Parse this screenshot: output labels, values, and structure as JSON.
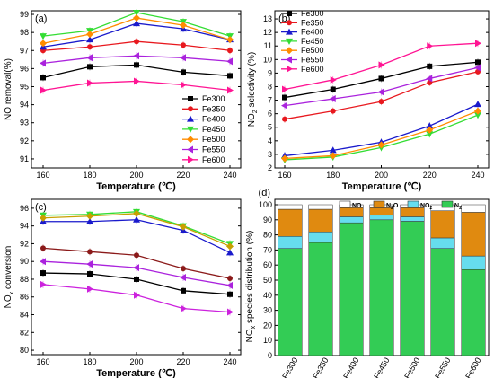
{
  "chart_data": [
    {
      "id": "a",
      "type": "line",
      "panel_label": "(a)",
      "xlabel": "Temperature (℃)",
      "ylabel": "NO removal(%)",
      "x": [
        160,
        180,
        200,
        220,
        240
      ],
      "xticks": [
        "160",
        "180",
        "200",
        "220",
        "240"
      ],
      "ylim": [
        90.5,
        99.2
      ],
      "yticks": [
        91,
        92,
        93,
        94,
        95,
        96,
        97,
        98,
        99
      ],
      "legend_position": "right",
      "series": [
        {
          "name": "Fe300",
          "color": "#000000",
          "marker": "square",
          "values": [
            95.5,
            96.1,
            96.2,
            95.8,
            95.6
          ]
        },
        {
          "name": "Fe350",
          "color": "#e8181e",
          "marker": "circle",
          "values": [
            97.0,
            97.2,
            97.5,
            97.3,
            97.0
          ]
        },
        {
          "name": "Fe400",
          "color": "#1a1acc",
          "marker": "triangle",
          "values": [
            97.2,
            97.6,
            98.5,
            98.2,
            97.6
          ]
        },
        {
          "name": "Fe450",
          "color": "#33dd33",
          "marker": "tri-down",
          "values": [
            97.8,
            98.1,
            99.1,
            98.6,
            97.8
          ]
        },
        {
          "name": "Fe500",
          "color": "#ff8c00",
          "marker": "diamond",
          "values": [
            97.4,
            97.9,
            98.8,
            98.4,
            97.6
          ]
        },
        {
          "name": "Fe550",
          "color": "#aa22dd",
          "marker": "tri-left",
          "values": [
            96.3,
            96.6,
            96.7,
            96.6,
            96.4
          ]
        },
        {
          "name": "Fe600",
          "color": "#ff1493",
          "marker": "tri-right",
          "values": [
            94.8,
            95.2,
            95.3,
            95.1,
            94.8
          ]
        }
      ]
    },
    {
      "id": "b",
      "type": "line",
      "panel_label": "(b)",
      "xlabel": "Temperature (℃)",
      "ylabel_main": "NO",
      "ylabel_sub": "2",
      "ylabel_rest": " selectivity (%)",
      "x": [
        160,
        180,
        200,
        220,
        240
      ],
      "xticks": [
        "160",
        "180",
        "200",
        "220",
        "240"
      ],
      "ylim": [
        2,
        13.6
      ],
      "yticks": [
        2,
        3,
        4,
        5,
        6,
        7,
        8,
        9,
        10,
        11,
        12,
        13
      ],
      "legend_position": "top-left",
      "series": [
        {
          "name": "Fe300",
          "color": "#000000",
          "marker": "square",
          "values": [
            7.2,
            7.8,
            8.6,
            9.5,
            9.8
          ]
        },
        {
          "name": "Fe350",
          "color": "#e8181e",
          "marker": "circle",
          "values": [
            5.6,
            6.2,
            6.9,
            8.3,
            9.1
          ]
        },
        {
          "name": "Fe400",
          "color": "#1a1acc",
          "marker": "triangle",
          "values": [
            2.9,
            3.3,
            3.9,
            5.1,
            6.7
          ]
        },
        {
          "name": "Fe450",
          "color": "#33dd33",
          "marker": "tri-down",
          "values": [
            2.6,
            2.8,
            3.5,
            4.5,
            5.9
          ]
        },
        {
          "name": "Fe500",
          "color": "#ff8c00",
          "marker": "diamond",
          "values": [
            2.7,
            2.9,
            3.7,
            4.8,
            6.2
          ]
        },
        {
          "name": "Fe550",
          "color": "#aa22dd",
          "marker": "tri-left",
          "values": [
            6.6,
            7.1,
            7.6,
            8.6,
            9.4
          ]
        },
        {
          "name": "Fe600",
          "color": "#ff1493",
          "marker": "tri-right",
          "values": [
            7.8,
            8.5,
            9.6,
            11.0,
            11.2
          ]
        }
      ]
    },
    {
      "id": "c",
      "type": "line",
      "panel_label": "(c)",
      "xlabel": "Temperature (℃)",
      "ylabel_main": "NO",
      "ylabel_sub": "x",
      "ylabel_rest": " conversion",
      "x": [
        160,
        180,
        200,
        220,
        240
      ],
      "xticks": [
        "160",
        "180",
        "200",
        "220",
        "240"
      ],
      "ylim": [
        79.5,
        97
      ],
      "yticks": [
        80,
        82,
        84,
        86,
        88,
        90,
        92,
        94,
        96
      ],
      "series": [
        {
          "name": "Fe300",
          "color": "#000000",
          "marker": "square",
          "values": [
            88.7,
            88.6,
            88.0,
            86.7,
            86.3
          ]
        },
        {
          "name": "Fe350",
          "color": "#8b1a1a",
          "marker": "circle",
          "values": [
            91.5,
            91.1,
            90.7,
            89.2,
            88.1
          ]
        },
        {
          "name": "Fe400",
          "color": "#1a1acc",
          "marker": "triangle",
          "values": [
            94.5,
            94.5,
            94.7,
            93.5,
            91.0
          ]
        },
        {
          "name": "Fe450",
          "color": "#33dd33",
          "marker": "tri-down",
          "values": [
            95.2,
            95.3,
            95.6,
            94.0,
            92.0
          ]
        },
        {
          "name": "Fe500",
          "color": "#c8a000",
          "marker": "diamond",
          "values": [
            94.9,
            95.1,
            95.4,
            93.9,
            91.7
          ]
        },
        {
          "name": "Fe550",
          "color": "#aa22dd",
          "marker": "tri-left",
          "values": [
            90.0,
            89.7,
            89.3,
            88.2,
            87.3
          ]
        },
        {
          "name": "Fe600",
          "color": "#cc22dd",
          "marker": "tri-right",
          "values": [
            87.4,
            86.9,
            86.2,
            84.7,
            84.3
          ]
        }
      ]
    },
    {
      "id": "d",
      "type": "bar",
      "stacked": true,
      "panel_label": "(d)",
      "ylabel_main": "NO",
      "ylabel_sub": "x",
      "ylabel_rest": " species distribution (%)",
      "categories": [
        "Fe300",
        "Fe350",
        "Fe400",
        "Fe450",
        "Fe500",
        "Fe550",
        "Fe600"
      ],
      "ylim": [
        0,
        100
      ],
      "yticks": [
        0,
        10,
        20,
        30,
        40,
        50,
        60,
        70,
        80,
        90,
        100
      ],
      "legend_position": "top",
      "series": [
        {
          "name": "N2",
          "label_main": "N",
          "label_sub": "2",
          "color": "#33cc55",
          "values": [
            71,
            75,
            88,
            90,
            89,
            71,
            57
          ]
        },
        {
          "name": "NO2",
          "label_main": "NO",
          "label_sub": "2",
          "color": "#66ddee",
          "values": [
            8,
            7,
            4,
            3,
            3,
            7,
            9
          ]
        },
        {
          "name": "N2O",
          "label_main": "N",
          "label_sub": "2",
          "label_rest": "O",
          "color": "#e08a10",
          "values": [
            18,
            15,
            6,
            5,
            6,
            18,
            29
          ]
        },
        {
          "name": "NO",
          "label_main": "NO",
          "label_sub": "",
          "color": "#ffffff",
          "values": [
            3,
            3,
            2,
            2,
            2,
            4,
            5
          ]
        }
      ]
    }
  ]
}
